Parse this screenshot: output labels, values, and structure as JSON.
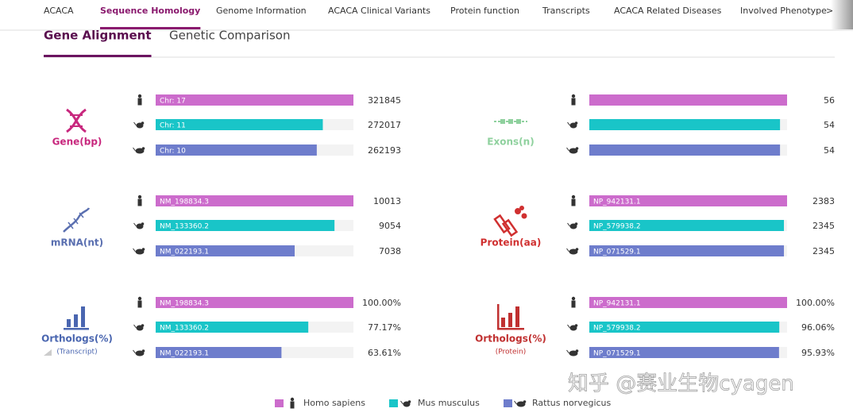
{
  "nav": {
    "items": [
      "ACACA",
      "Sequence Homology",
      "Genome Information",
      "ACACA Clinical Variants",
      "Protein function",
      "Transcripts",
      "ACACA Related Diseases",
      "Involved Phenotype"
    ],
    "active": 1
  },
  "tabs": {
    "items": [
      "Gene Alignment",
      "Genetic Comparison"
    ],
    "active": 0
  },
  "colors": [
    "#cc6ccc",
    "#19c5c8",
    "#6e7dcc"
  ],
  "panels": [
    {
      "label": "Gene(bp)",
      "rows": [
        {
          "bar_label": "Chr: 17",
          "value": 321845
        },
        {
          "bar_label": "Chr: 11",
          "value": 272017
        },
        {
          "bar_label": "Chr: 10",
          "value": 262193
        }
      ]
    },
    {
      "label": "Exons(n)",
      "rows": [
        {
          "value": 56
        },
        {
          "value": 54
        },
        {
          "value": 54
        }
      ]
    },
    {
      "label": "mRNA(nt)",
      "rows": [
        {
          "bar_label": "NM_198834.3",
          "value": 10013
        },
        {
          "bar_label": "NM_133360.2",
          "value": 9054
        },
        {
          "bar_label": "NM_022193.1",
          "value": 7038
        }
      ]
    },
    {
      "label": "Protein(aa)",
      "rows": [
        {
          "bar_label": "NP_942131.1",
          "value": 2383
        },
        {
          "bar_label": "NP_579938.2",
          "value": 2345
        },
        {
          "bar_label": "NP_071529.1",
          "value": 2345
        }
      ]
    },
    {
      "label": "Orthologs(%)",
      "sublabel": "(Transcript)",
      "rows": [
        {
          "bar_label": "NM_198834.3",
          "value": 100.0,
          "value_label": "100.00%"
        },
        {
          "bar_label": "NM_133360.2",
          "value": 77.17,
          "value_label": "77.17%"
        },
        {
          "bar_label": "NM_022193.1",
          "value": 63.61,
          "value_label": "63.61%"
        }
      ]
    },
    {
      "label": "Orthologs(%)",
      "sublabel": "(Protein)",
      "rows": [
        {
          "bar_label": "NP_942131.1",
          "value": 100.0,
          "value_label": "100.00%"
        },
        {
          "bar_label": "NP_579938.2",
          "value": 96.06,
          "value_label": "96.06%"
        },
        {
          "bar_label": "NP_071529.1",
          "value": 95.93,
          "value_label": "95.93%"
        }
      ]
    }
  ],
  "legend": [
    "Homo sapiens",
    "Mus musculus",
    "Rattus norvegicus"
  ],
  "watermark": "知乎 @赛业生物cyagen"
}
